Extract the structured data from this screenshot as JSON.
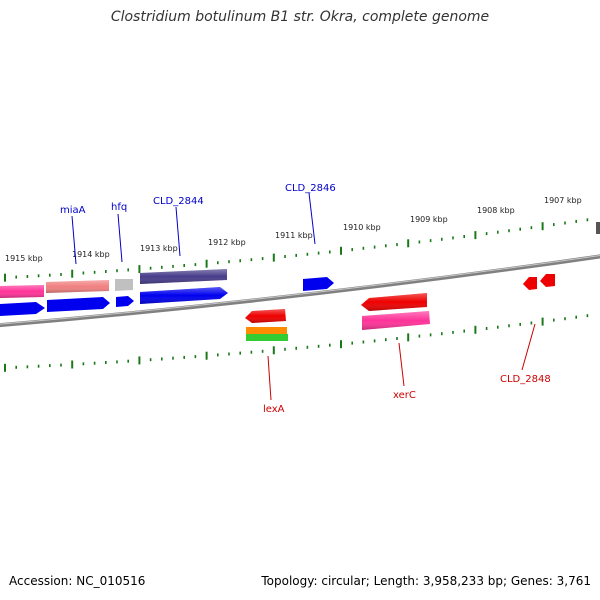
{
  "title": "Clostridium botulinum B1 str. Okra, complete genome",
  "footer": {
    "accession": "Accession: NC_010516",
    "summary": "Topology: circular; Length: 3,958,233 bp; Genes: 3,761"
  },
  "colors": {
    "backbone": "#808080",
    "tick": "#1a7a1a",
    "label_forward": "#0000cc",
    "label_reverse": "#cc0000",
    "pink": "#ff3399",
    "salmon": "#f08080",
    "blue": "#0000ee",
    "grey": "#c0c0c0",
    "purple": "#483d8b",
    "red": "#ee0000",
    "orange": "#ff8c00",
    "green": "#33cc33",
    "magenta": "#ff3399"
  },
  "kbp_labels": [
    "1915 kbp",
    "1914 kbp",
    "1913 kbp",
    "1912 kbp",
    "1911 kbp",
    "1910 kbp",
    "1909 kbp",
    "1908 kbp",
    "1907 kbp"
  ],
  "forward_labels": [
    "miaA",
    "hfq",
    "CLD_2844",
    "CLD_2846"
  ],
  "reverse_labels": [
    "lexA",
    "xerC",
    "CLD_2848"
  ]
}
